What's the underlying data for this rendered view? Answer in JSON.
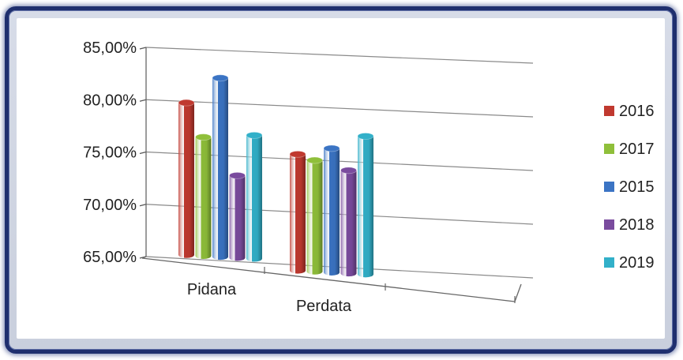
{
  "chart_data": {
    "type": "bar",
    "categories": [
      "Pidana",
      "Perdata"
    ],
    "series": [
      {
        "name": "2016",
        "values": [
          79.5,
          76.0
        ],
        "color": "#c0392f"
      },
      {
        "name": "2017",
        "values": [
          76.3,
          75.5
        ],
        "color": "#8fbf3a"
      },
      {
        "name": "2015",
        "values": [
          82.0,
          76.7
        ],
        "color": "#3b74c4"
      },
      {
        "name": "2018",
        "values": [
          72.8,
          74.7
        ],
        "color": "#7a4b9e"
      },
      {
        "name": "2019",
        "values": [
          76.7,
          78.0
        ],
        "color": "#32b0c9"
      }
    ],
    "yticks": [
      "65,00%",
      "70,00%",
      "75,00%",
      "80,00%",
      "85,00%"
    ],
    "ylim": [
      65,
      85
    ],
    "title": "",
    "xlabel": "",
    "ylabel": "",
    "grid": true,
    "legend_position": "right",
    "style": "3d-cylinder"
  }
}
